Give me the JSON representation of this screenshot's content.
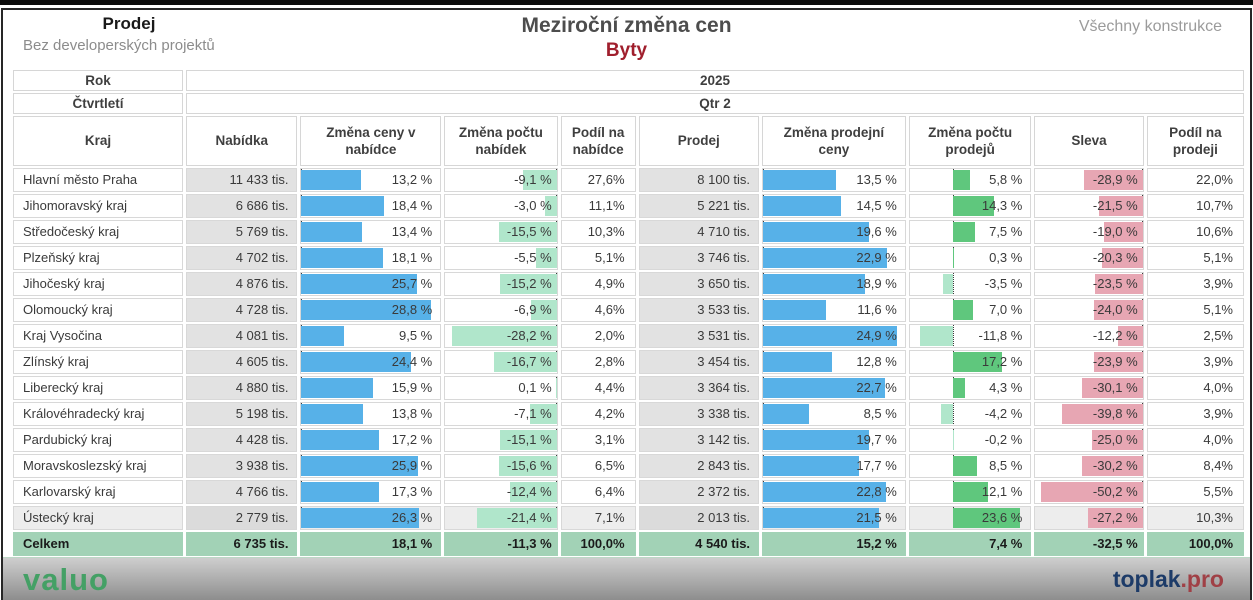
{
  "header": {
    "left_title": "Prodej",
    "left_subtitle": "Bez developerských projektů",
    "center_title": "Meziroční změna cen",
    "center_subtitle": "Byty",
    "right_label": "Všechny konstrukce"
  },
  "filters": {
    "rok_label": "Rok",
    "rok_value": "2025",
    "ctvrtleti_label": "Čtvrtletí",
    "ctvrtleti_value": "Qtr 2"
  },
  "colors": {
    "blue": "#57b1e8",
    "mint": "#b0e6cb",
    "green": "#5fc77d",
    "pink": "#e7a6b3",
    "total_bg": "#a2d2b6",
    "subtitle_red": "#a01f2d",
    "valuo_green": "#44a065",
    "toplak_navy": "#1d3b68",
    "toplak_red": "#a04046"
  },
  "footer": {
    "left_logo": "valuo",
    "right_logo_name": "toplak",
    "right_logo_suffix": ".pro"
  },
  "chart_data": {
    "type": "table",
    "title": "Meziroční změna cen",
    "subtitle": "Byty",
    "columns": [
      "Kraj",
      "Nabídka",
      "Změna ceny v nabídce",
      "Změna počtu nabídek",
      "Podíl na nabídce",
      "Prodej",
      "Změna prodejní ceny",
      "Změna počtu prodejů",
      "Sleva",
      "Podíl na prodeji"
    ],
    "rows": [
      {
        "kraj": "Hlavní město Praha",
        "nabidka": "11 433 tis.",
        "zmena_ceny_v_nabidce": {
          "text": "13,2 %",
          "value": 13.2
        },
        "zmena_poctu_nabidek": {
          "text": "-9,1 %",
          "value": -9.1
        },
        "podil_na_nabidce": "27,6%",
        "prodej": "8 100 tis.",
        "zmena_prodejni_ceny": {
          "text": "13,5 %",
          "value": 13.5
        },
        "zmena_poctu_prodeju": {
          "text": "5,8 %",
          "value": 5.8
        },
        "sleva": {
          "text": "-28,9 %",
          "value": -28.9
        },
        "podil_na_prodeji": "22,0%",
        "highlighted": false
      },
      {
        "kraj": "Jihomoravský kraj",
        "nabidka": "6 686 tis.",
        "zmena_ceny_v_nabidce": {
          "text": "18,4 %",
          "value": 18.4
        },
        "zmena_poctu_nabidek": {
          "text": "-3,0 %",
          "value": -3.0
        },
        "podil_na_nabidce": "11,1%",
        "prodej": "5 221 tis.",
        "zmena_prodejni_ceny": {
          "text": "14,5 %",
          "value": 14.5
        },
        "zmena_poctu_prodeju": {
          "text": "14,3 %",
          "value": 14.3
        },
        "sleva": {
          "text": "-21,5 %",
          "value": -21.5
        },
        "podil_na_prodeji": "10,7%",
        "highlighted": false
      },
      {
        "kraj": "Středočeský kraj",
        "nabidka": "5 769 tis.",
        "zmena_ceny_v_nabidce": {
          "text": "13,4 %",
          "value": 13.4
        },
        "zmena_poctu_nabidek": {
          "text": "-15,5 %",
          "value": -15.5
        },
        "podil_na_nabidce": "10,3%",
        "prodej": "4 710 tis.",
        "zmena_prodejni_ceny": {
          "text": "19,6 %",
          "value": 19.6
        },
        "zmena_poctu_prodeju": {
          "text": "7,5 %",
          "value": 7.5
        },
        "sleva": {
          "text": "-19,0 %",
          "value": -19.0
        },
        "podil_na_prodeji": "10,6%",
        "highlighted": false
      },
      {
        "kraj": "Plzeňský kraj",
        "nabidka": "4 702 tis.",
        "zmena_ceny_v_nabidce": {
          "text": "18,1 %",
          "value": 18.1
        },
        "zmena_poctu_nabidek": {
          "text": "-5,5 %",
          "value": -5.5
        },
        "podil_na_nabidce": "5,1%",
        "prodej": "3 746 tis.",
        "zmena_prodejni_ceny": {
          "text": "22,9 %",
          "value": 22.9
        },
        "zmena_poctu_prodeju": {
          "text": "0,3 %",
          "value": 0.3
        },
        "sleva": {
          "text": "-20,3 %",
          "value": -20.3
        },
        "podil_na_prodeji": "5,1%",
        "highlighted": false
      },
      {
        "kraj": "Jihočeský kraj",
        "nabidka": "4 876 tis.",
        "zmena_ceny_v_nabidce": {
          "text": "25,7 %",
          "value": 25.7
        },
        "zmena_poctu_nabidek": {
          "text": "-15,2 %",
          "value": -15.2
        },
        "podil_na_nabidce": "4,9%",
        "prodej": "3 650 tis.",
        "zmena_prodejni_ceny": {
          "text": "18,9 %",
          "value": 18.9
        },
        "zmena_poctu_prodeju": {
          "text": "-3,5 %",
          "value": -3.5
        },
        "sleva": {
          "text": "-23,5 %",
          "value": -23.5
        },
        "podil_na_prodeji": "3,9%",
        "highlighted": false
      },
      {
        "kraj": "Olomoucký kraj",
        "nabidka": "4 728 tis.",
        "zmena_ceny_v_nabidce": {
          "text": "28,8 %",
          "value": 28.8
        },
        "zmena_poctu_nabidek": {
          "text": "-6,9 %",
          "value": -6.9
        },
        "podil_na_nabidce": "4,6%",
        "prodej": "3 533 tis.",
        "zmena_prodejni_ceny": {
          "text": "11,6 %",
          "value": 11.6
        },
        "zmena_poctu_prodeju": {
          "text": "7,0 %",
          "value": 7.0
        },
        "sleva": {
          "text": "-24,0 %",
          "value": -24.0
        },
        "podil_na_prodeji": "5,1%",
        "highlighted": false
      },
      {
        "kraj": "Kraj Vysočina",
        "nabidka": "4 081 tis.",
        "zmena_ceny_v_nabidce": {
          "text": "9,5 %",
          "value": 9.5
        },
        "zmena_poctu_nabidek": {
          "text": "-28,2 %",
          "value": -28.2
        },
        "podil_na_nabidce": "2,0%",
        "prodej": "3 531 tis.",
        "zmena_prodejni_ceny": {
          "text": "24,9 %",
          "value": 24.9
        },
        "zmena_poctu_prodeju": {
          "text": "-11,8 %",
          "value": -11.8
        },
        "sleva": {
          "text": "-12,2 %",
          "value": -12.2
        },
        "podil_na_prodeji": "2,5%",
        "highlighted": false
      },
      {
        "kraj": "Zlínský kraj",
        "nabidka": "4 605 tis.",
        "zmena_ceny_v_nabidce": {
          "text": "24,4 %",
          "value": 24.4
        },
        "zmena_poctu_nabidek": {
          "text": "-16,7 %",
          "value": -16.7
        },
        "podil_na_nabidce": "2,8%",
        "prodej": "3 454 tis.",
        "zmena_prodejni_ceny": {
          "text": "12,8 %",
          "value": 12.8
        },
        "zmena_poctu_prodeju": {
          "text": "17,2 %",
          "value": 17.2
        },
        "sleva": {
          "text": "-23,9 %",
          "value": -23.9
        },
        "podil_na_prodeji": "3,9%",
        "highlighted": false
      },
      {
        "kraj": "Liberecký kraj",
        "nabidka": "4 880 tis.",
        "zmena_ceny_v_nabidce": {
          "text": "15,9 %",
          "value": 15.9
        },
        "zmena_poctu_nabidek": {
          "text": "0,1 %",
          "value": 0.1
        },
        "podil_na_nabidce": "4,4%",
        "prodej": "3 364 tis.",
        "zmena_prodejni_ceny": {
          "text": "22,7 %",
          "value": 22.7
        },
        "zmena_poctu_prodeju": {
          "text": "4,3 %",
          "value": 4.3
        },
        "sleva": {
          "text": "-30,1 %",
          "value": -30.1
        },
        "podil_na_prodeji": "4,0%",
        "highlighted": false
      },
      {
        "kraj": "Královéhradecký kraj",
        "nabidka": "5 198 tis.",
        "zmena_ceny_v_nabidce": {
          "text": "13,8 %",
          "value": 13.8
        },
        "zmena_poctu_nabidek": {
          "text": "-7,1 %",
          "value": -7.1
        },
        "podil_na_nabidce": "4,2%",
        "prodej": "3 338 tis.",
        "zmena_prodejni_ceny": {
          "text": "8,5 %",
          "value": 8.5
        },
        "zmena_poctu_prodeju": {
          "text": "-4,2 %",
          "value": -4.2
        },
        "sleva": {
          "text": "-39,8 %",
          "value": -39.8
        },
        "podil_na_prodeji": "3,9%",
        "highlighted": false
      },
      {
        "kraj": "Pardubický kraj",
        "nabidka": "4 428 tis.",
        "zmena_ceny_v_nabidce": {
          "text": "17,2 %",
          "value": 17.2
        },
        "zmena_poctu_nabidek": {
          "text": "-15,1 %",
          "value": -15.1
        },
        "podil_na_nabidce": "3,1%",
        "prodej": "3 142 tis.",
        "zmena_prodejni_ceny": {
          "text": "19,7 %",
          "value": 19.7
        },
        "zmena_poctu_prodeju": {
          "text": "-0,2 %",
          "value": -0.2
        },
        "sleva": {
          "text": "-25,0 %",
          "value": -25.0
        },
        "podil_na_prodeji": "4,0%",
        "highlighted": false
      },
      {
        "kraj": "Moravskoslezský kraj",
        "nabidka": "3 938 tis.",
        "zmena_ceny_v_nabidce": {
          "text": "25,9 %",
          "value": 25.9
        },
        "zmena_poctu_nabidek": {
          "text": "-15,6 %",
          "value": -15.6
        },
        "podil_na_nabidce": "6,5%",
        "prodej": "2 843 tis.",
        "zmena_prodejni_ceny": {
          "text": "17,7 %",
          "value": 17.7
        },
        "zmena_poctu_prodeju": {
          "text": "8,5 %",
          "value": 8.5
        },
        "sleva": {
          "text": "-30,2 %",
          "value": -30.2
        },
        "podil_na_prodeji": "8,4%",
        "highlighted": false
      },
      {
        "kraj": "Karlovarský kraj",
        "nabidka": "4 766 tis.",
        "zmena_ceny_v_nabidce": {
          "text": "17,3 %",
          "value": 17.3
        },
        "zmena_poctu_nabidek": {
          "text": "-12,4 %",
          "value": -12.4
        },
        "podil_na_nabidce": "6,4%",
        "prodej": "2 372 tis.",
        "zmena_prodejni_ceny": {
          "text": "22,8 %",
          "value": 22.8
        },
        "zmena_poctu_prodeju": {
          "text": "12,1 %",
          "value": 12.1
        },
        "sleva": {
          "text": "-50,2 %",
          "value": -50.2
        },
        "podil_na_prodeji": "5,5%",
        "highlighted": false
      },
      {
        "kraj": "Ústecký kraj",
        "nabidka": "2 779 tis.",
        "zmena_ceny_v_nabidce": {
          "text": "26,3 %",
          "value": 26.3
        },
        "zmena_poctu_nabidek": {
          "text": "-21,4 %",
          "value": -21.4
        },
        "podil_na_nabidce": "7,1%",
        "prodej": "2 013 tis.",
        "zmena_prodejni_ceny": {
          "text": "21,5 %",
          "value": 21.5
        },
        "zmena_poctu_prodeju": {
          "text": "23,6 %",
          "value": 23.6
        },
        "sleva": {
          "text": "-27,2 %",
          "value": -27.2
        },
        "podil_na_prodeji": "10,3%",
        "highlighted": true
      }
    ],
    "total": {
      "kraj": "Celkem",
      "nabidka": "6 735 tis.",
      "zmena_ceny_v_nabidce": "18,1 %",
      "zmena_poctu_nabidek": "-11,3 %",
      "podil_na_nabidce": "100,0%",
      "prodej": "4 540 tis.",
      "zmena_prodejni_ceny": "15,2 %",
      "zmena_poctu_prodeju": "7,4 %",
      "sleva": "-32,5 %",
      "podil_na_prodeji": "100,0%"
    }
  }
}
